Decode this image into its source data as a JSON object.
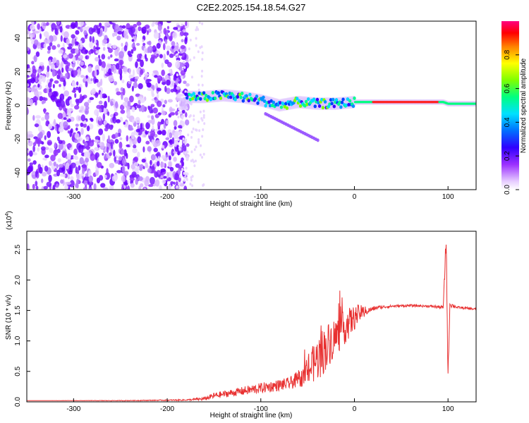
{
  "chart_data": [
    {
      "type": "heatmap",
      "title": "C2E2.2025.154.18.54.G27",
      "xlabel": "Height of straight line (km)",
      "ylabel": "Frequency (Hz)",
      "xlim": [
        -350,
        130
      ],
      "ylim": [
        -50,
        50
      ],
      "xticks": [
        -300,
        -200,
        -100,
        0,
        100
      ],
      "yticks": [
        -40,
        -20,
        0,
        20,
        40
      ],
      "colorbar": {
        "label": "Normalized spectral amplitude",
        "range": [
          0,
          1
        ],
        "ticks": [
          "0.0",
          "0.2",
          "0.4",
          "0.6",
          "0.8"
        ],
        "colors": [
          "#ffffff",
          "#e6ccff",
          "#9b30ff",
          "#6a00ff",
          "#0000ff",
          "#00c8ff",
          "#00ff80",
          "#7fff00",
          "#ffff00",
          "#ff8000",
          "#ff0000",
          "#ff0080"
        ]
      },
      "ridge": [
        {
          "x": -180,
          "f": 5
        },
        {
          "x": -160,
          "f": 5
        },
        {
          "x": -140,
          "f": 6
        },
        {
          "x": -120,
          "f": 5
        },
        {
          "x": -100,
          "f": 3
        },
        {
          "x": -80,
          "f": 0
        },
        {
          "x": -60,
          "f": 2
        },
        {
          "x": -40,
          "f": 1
        },
        {
          "x": -20,
          "f": 1
        },
        {
          "x": 0,
          "f": 2
        },
        {
          "x": 20,
          "f": 2
        },
        {
          "x": 50,
          "f": 2
        },
        {
          "x": 80,
          "f": 2
        },
        {
          "x": 95,
          "f": 2
        },
        {
          "x": 100,
          "f": 1
        },
        {
          "x": 130,
          "f": 1
        }
      ]
    },
    {
      "type": "line",
      "title": "",
      "xlabel": "Height of straight line (km)",
      "ylabel": "SNR (10 * v/v)",
      "multiplier": "(x10",
      "multiplier_exp": "4",
      "multiplier_close": ")",
      "xlim": [
        -350,
        130
      ],
      "ylim": [
        0,
        2.8
      ],
      "xticks": [
        -300,
        -200,
        -100,
        0,
        100
      ],
      "yticks": [
        "0.0",
        "0.5",
        "1.0",
        "1.5",
        "2.0",
        "2.5"
      ],
      "color": "#e83030",
      "series": [
        {
          "x": [
            -350,
            -250,
            -180,
            -160,
            -150,
            -130,
            -110,
            -90,
            -70,
            -55,
            -45,
            -35,
            -25,
            -15,
            -5,
            5,
            15,
            25,
            40,
            60,
            80,
            95,
            98,
            100,
            102,
            110,
            130
          ],
          "y": [
            0.02,
            0.02,
            0.03,
            0.05,
            0.1,
            0.15,
            0.2,
            0.25,
            0.3,
            0.4,
            0.6,
            0.8,
            1.0,
            1.15,
            1.3,
            1.45,
            1.5,
            1.55,
            1.57,
            1.58,
            1.57,
            1.55,
            2.7,
            0.4,
            1.6,
            1.55,
            1.52
          ],
          "noise": [
            0.0,
            0.005,
            0.01,
            0.03,
            0.05,
            0.06,
            0.08,
            0.09,
            0.1,
            0.15,
            0.3,
            0.4,
            0.35,
            0.3,
            0.25,
            0.15,
            0.05,
            0.03,
            0.02,
            0.02,
            0.02,
            0.03,
            0.2,
            0.1,
            0.05,
            0.02,
            0.02
          ]
        }
      ]
    }
  ]
}
